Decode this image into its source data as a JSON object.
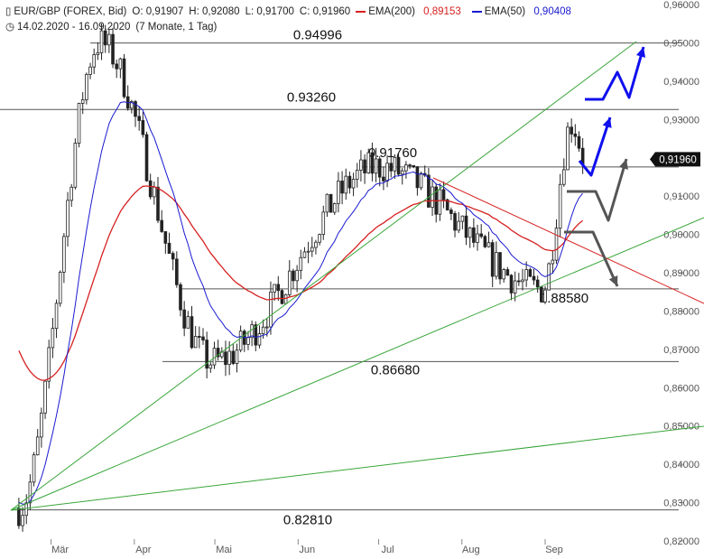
{
  "header": {
    "symbol": "EUR/GBP (FOREX, Bid)",
    "open": "O: 0,91907",
    "high": "H: 0,92080",
    "low": "L: 0,91700",
    "close": "C: 0,91960",
    "ema200_label": "EMA(200)",
    "ema200_value": "0,89153",
    "ema50_label": "EMA(50)",
    "ema50_value": "0,90408",
    "range": "14.02.2020 - 16.09.2020",
    "period": "(7 Monate, 1 Tag)",
    "chart_icon": "candlestick-icon",
    "clock_icon": "clock-icon"
  },
  "colors": {
    "candle": "#222222",
    "ema200": "#d62020",
    "ema50": "#1a1ad0",
    "trend_green": "#3aa63a",
    "trend_red": "#d62020",
    "forecast_blue": "#1010ee",
    "forecast_gray": "#555555",
    "level_line": "#555555",
    "current_price_bg": "#111111"
  },
  "chart_data": {
    "type": "candlestick",
    "ylim": [
      0.82,
      0.96
    ],
    "x_ticks": [
      "Mär",
      "Apr",
      "Mai",
      "Jun",
      "Jul",
      "Aug",
      "Sep"
    ],
    "y_ticks": [
      "0,96000",
      "0,95000",
      "0,94000",
      "0,93000",
      "0,92000",
      "0,91000",
      "0,90000",
      "0,89000",
      "0,88000",
      "0,87000",
      "0,86000",
      "0,85000",
      "0,84000",
      "0,83000",
      "0,82000"
    ],
    "current_price": "0,91960",
    "levels": [
      {
        "label": "0.94996",
        "value": 0.94996
      },
      {
        "label": "0.93260",
        "value": 0.9326
      },
      {
        "label": "0.91760",
        "value": 0.9176
      },
      {
        "label": "0.88580",
        "value": 0.8858
      },
      {
        "label": "0.86680",
        "value": 0.8668
      },
      {
        "label": "0.82810",
        "value": 0.8281
      }
    ],
    "key_points": [
      {
        "date": "2020-02-18",
        "close": 0.8285
      },
      {
        "date": "2020-03-19",
        "high": 0.94996
      },
      {
        "date": "2020-04-30",
        "low": 0.8668
      },
      {
        "date": "2020-07-01",
        "high": 0.9176
      },
      {
        "date": "2020-08-31",
        "low": 0.8858
      },
      {
        "date": "2020-09-11",
        "high": 0.9292
      },
      {
        "date": "2020-09-16",
        "close": 0.9196
      }
    ]
  }
}
